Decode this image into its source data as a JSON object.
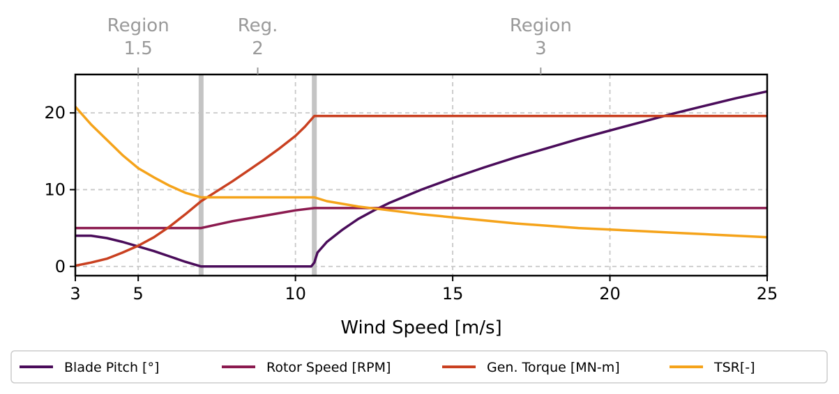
{
  "chart_data": {
    "type": "line",
    "title": "",
    "xlabel": "Wind Speed [m/s]",
    "ylabel": "",
    "xlim": [
      3,
      25
    ],
    "ylim": [
      -1.2,
      25
    ],
    "x_ticks": [
      3,
      5,
      10,
      15,
      20,
      25
    ],
    "y_ticks": [
      0,
      10,
      20
    ],
    "grid": true,
    "legend_position": "bottom",
    "region_boundaries": [
      7.0,
      10.6
    ],
    "region_labels": [
      {
        "x": 5,
        "lines": [
          "Region",
          "1.5"
        ]
      },
      {
        "x": 8.8,
        "lines": [
          "Reg.",
          "2"
        ]
      },
      {
        "x": 17.8,
        "lines": [
          "Region",
          "3"
        ]
      }
    ],
    "series": [
      {
        "name": "Blade Pitch [°]",
        "color": "#4a0c5a",
        "points": [
          [
            3,
            4.0
          ],
          [
            3.5,
            4.0
          ],
          [
            4,
            3.7
          ],
          [
            4.5,
            3.2
          ],
          [
            5,
            2.6
          ],
          [
            5.5,
            2.0
          ],
          [
            6,
            1.3
          ],
          [
            6.5,
            0.6
          ],
          [
            7,
            0.0
          ],
          [
            8,
            0.0
          ],
          [
            9,
            0.0
          ],
          [
            10,
            0.0
          ],
          [
            10.5,
            0.0
          ],
          [
            10.6,
            0.5
          ],
          [
            10.7,
            1.8
          ],
          [
            11,
            3.2
          ],
          [
            11.5,
            4.8
          ],
          [
            12,
            6.2
          ],
          [
            12.5,
            7.3
          ],
          [
            13,
            8.3
          ],
          [
            14,
            10.0
          ],
          [
            15,
            11.5
          ],
          [
            16,
            12.9
          ],
          [
            17,
            14.2
          ],
          [
            18,
            15.4
          ],
          [
            19,
            16.6
          ],
          [
            20,
            17.7
          ],
          [
            21,
            18.8
          ],
          [
            22,
            19.9
          ],
          [
            23,
            20.9
          ],
          [
            24,
            21.9
          ],
          [
            25,
            22.8
          ]
        ]
      },
      {
        "name": "Rotor Speed [RPM]",
        "color": "#8b1a4f",
        "points": [
          [
            3,
            5.0
          ],
          [
            5,
            5.0
          ],
          [
            6,
            5.0
          ],
          [
            7,
            5.0
          ],
          [
            8,
            5.9
          ],
          [
            9,
            6.6
          ],
          [
            10,
            7.3
          ],
          [
            10.6,
            7.6
          ],
          [
            12,
            7.6
          ],
          [
            15,
            7.6
          ],
          [
            20,
            7.6
          ],
          [
            25,
            7.6
          ]
        ]
      },
      {
        "name": "Gen. Torque [MN-m]",
        "color": "#c94020",
        "points": [
          [
            3,
            0.1
          ],
          [
            3.5,
            0.5
          ],
          [
            4,
            1.0
          ],
          [
            4.5,
            1.8
          ],
          [
            5,
            2.7
          ],
          [
            5.5,
            3.8
          ],
          [
            6,
            5.2
          ],
          [
            6.5,
            6.8
          ],
          [
            7,
            8.5
          ],
          [
            7.5,
            9.8
          ],
          [
            8,
            11.1
          ],
          [
            8.5,
            12.5
          ],
          [
            9,
            13.9
          ],
          [
            9.5,
            15.4
          ],
          [
            10,
            17.0
          ],
          [
            10.3,
            18.2
          ],
          [
            10.6,
            19.6
          ],
          [
            12,
            19.6
          ],
          [
            15,
            19.6
          ],
          [
            20,
            19.6
          ],
          [
            25,
            19.6
          ]
        ]
      },
      {
        "name": "TSR[-]",
        "color": "#f5a31a",
        "points": [
          [
            3,
            20.8
          ],
          [
            3.5,
            18.5
          ],
          [
            4,
            16.5
          ],
          [
            4.5,
            14.5
          ],
          [
            5,
            12.8
          ],
          [
            5.5,
            11.6
          ],
          [
            6,
            10.5
          ],
          [
            6.5,
            9.6
          ],
          [
            7,
            9.0
          ],
          [
            8,
            9.0
          ],
          [
            9,
            9.0
          ],
          [
            10,
            9.0
          ],
          [
            10.6,
            9.0
          ],
          [
            11,
            8.5
          ],
          [
            12,
            7.8
          ],
          [
            13,
            7.3
          ],
          [
            14,
            6.8
          ],
          [
            15,
            6.4
          ],
          [
            16,
            6.0
          ],
          [
            17,
            5.6
          ],
          [
            18,
            5.3
          ],
          [
            19,
            5.0
          ],
          [
            20,
            4.8
          ],
          [
            21,
            4.6
          ],
          [
            22,
            4.4
          ],
          [
            23,
            4.2
          ],
          [
            24,
            4.0
          ],
          [
            25,
            3.8
          ]
        ]
      }
    ]
  }
}
